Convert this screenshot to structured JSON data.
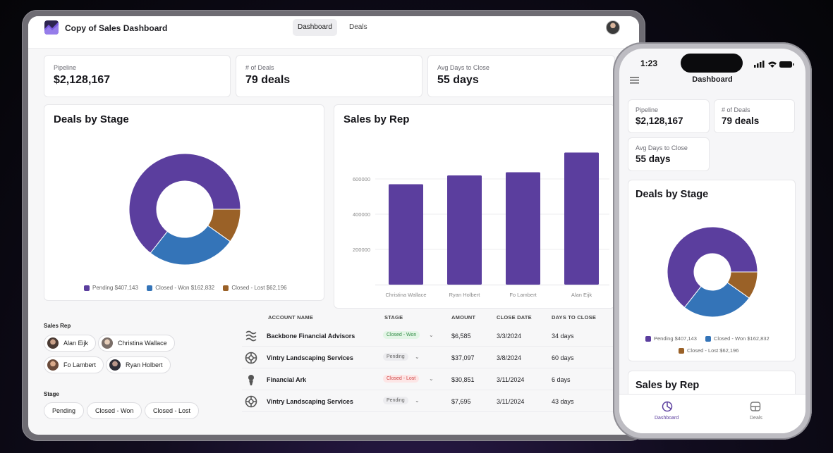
{
  "app": {
    "title": "Copy of Sales Dashboard",
    "tabs": [
      "Dashboard",
      "Deals"
    ]
  },
  "kpis": [
    {
      "label": "Pipeline",
      "value": "$2,128,167"
    },
    {
      "label": "# of Deals",
      "value": "79 deals"
    },
    {
      "label": "Avg Days to Close",
      "value": "55 days"
    }
  ],
  "deals_by_stage": {
    "title": "Deals by Stage",
    "legend": [
      {
        "label": "Pending $407,143",
        "color": "#5b3e9e"
      },
      {
        "label": "Closed - Won $162,832",
        "color": "#3474b8"
      },
      {
        "label": "Closed - Lost $62,196",
        "color": "#9a6127"
      }
    ]
  },
  "sales_by_rep": {
    "title": "Sales by Rep"
  },
  "chart_data": [
    {
      "type": "pie",
      "title": "Deals by Stage",
      "categories": [
        "Pending",
        "Closed - Won",
        "Closed - Lost"
      ],
      "values": [
        407143,
        162832,
        62196
      ],
      "colors": [
        "#5b3e9e",
        "#3474b8",
        "#9a6127"
      ],
      "donut": true
    },
    {
      "type": "bar",
      "title": "Sales by Rep",
      "categories": [
        "Christina Wallace",
        "Ryan Holbert",
        "Fo Lambert",
        "Alan Eijk"
      ],
      "values": [
        570000,
        620000,
        638000,
        750000
      ],
      "yticks": [
        200000,
        400000,
        600000
      ],
      "ylim": [
        0,
        800000
      ],
      "color": "#5b3e9e",
      "xlabel": "",
      "ylabel": ""
    }
  ],
  "filters": {
    "sales_rep_label": "Sales Rep",
    "reps": [
      "Alan Eijk",
      "Christina Wallace",
      "Fo Lambert",
      "Ryan Holbert"
    ],
    "stage_label": "Stage",
    "stages": [
      "Pending",
      "Closed - Won",
      "Closed - Lost"
    ]
  },
  "table": {
    "headers": [
      "ACCOUNT NAME",
      "STAGE",
      "AMOUNT",
      "CLOSE DATE",
      "DAYS TO CLOSE"
    ],
    "rows": [
      {
        "account": "Backbone Financial Advisors",
        "stage": "Closed - Won",
        "amount": "$6,585",
        "close_date": "3/3/2024",
        "days": "34 days"
      },
      {
        "account": "Vintry Landscaping Services",
        "stage": "Pending",
        "amount": "$37,097",
        "close_date": "3/8/2024",
        "days": "60 days"
      },
      {
        "account": "Financial Ark",
        "stage": "Closed - Lost",
        "amount": "$30,851",
        "close_date": "3/11/2024",
        "days": "6 days"
      },
      {
        "account": "Vintry Landscaping Services",
        "stage": "Pending",
        "amount": "$7,695",
        "close_date": "3/11/2024",
        "days": "43 days"
      }
    ],
    "stage_colors": {
      "Closed - Won": {
        "bg": "#e3f5e6",
        "fg": "#2f8a43"
      },
      "Pending": {
        "bg": "#ececef",
        "fg": "#666666"
      },
      "Closed - Lost": {
        "bg": "#fde6e6",
        "fg": "#d04545"
      }
    }
  },
  "phone": {
    "time": "1:23",
    "title": "Dashboard",
    "tabs": [
      "Dashboard",
      "Deals"
    ],
    "chart_title": "Deals by Stage",
    "next_title": "Sales by Rep"
  }
}
